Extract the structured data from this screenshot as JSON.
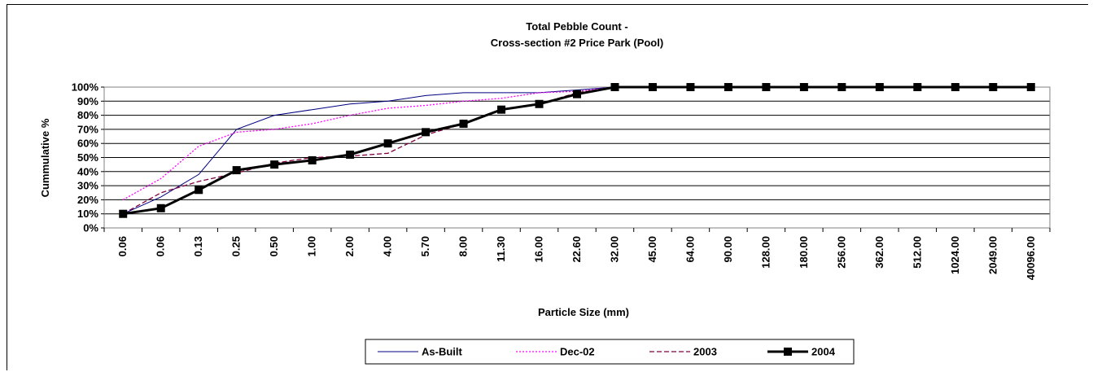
{
  "chart_data": {
    "type": "line",
    "title": [
      "Total Pebble Count -",
      "Cross-section #2  Price Park  (Pool)"
    ],
    "xlabel": "Particle Size (mm)",
    "ylabel": "Cummulative %",
    "categories": [
      "0.06",
      "0.06",
      "0.13",
      "0.25",
      "0.50",
      "1.00",
      "2.00",
      "4.00",
      "5.70",
      "8.00",
      "11.30",
      "16.00",
      "22.60",
      "32.00",
      "45.00",
      "64.00",
      "90.00",
      "128.00",
      "180.00",
      "256.00",
      "362.00",
      "512.00",
      "1024.00",
      "2049.00",
      "40096.00"
    ],
    "y_ticks": [
      "0%",
      "10%",
      "20%",
      "30%",
      "40%",
      "50%",
      "60%",
      "70%",
      "80%",
      "90%",
      "100%"
    ],
    "ylim": [
      0,
      100
    ],
    "grid": true,
    "legend_position": "bottom",
    "series": [
      {
        "name": "As-Built",
        "style": "solid-thin",
        "color": "#000080",
        "values": [
          10,
          22,
          38,
          70,
          80,
          84,
          88,
          90,
          94,
          96,
          96,
          96,
          98,
          100,
          100,
          100,
          100,
          100,
          100,
          100,
          100,
          100,
          100,
          100,
          100
        ]
      },
      {
        "name": "Dec-02",
        "style": "dotted",
        "color": "#ff00ff",
        "values": [
          20,
          35,
          58,
          68,
          70,
          74,
          80,
          85,
          87,
          90,
          92,
          96,
          97,
          100,
          100,
          100,
          100,
          100,
          100,
          100,
          100,
          100,
          100,
          100,
          100
        ]
      },
      {
        "name": "2003",
        "style": "dashed",
        "color": "#800040",
        "values": [
          10,
          25,
          33,
          39,
          46,
          50,
          51,
          53,
          66,
          74,
          84,
          88,
          96,
          100,
          100,
          100,
          100,
          100,
          100,
          100,
          100,
          100,
          100,
          100,
          100
        ]
      },
      {
        "name": "2004",
        "style": "bold-square",
        "color": "#000000",
        "values": [
          10,
          14,
          27,
          41,
          45,
          48,
          52,
          60,
          68,
          74,
          84,
          88,
          95,
          100,
          100,
          100,
          100,
          100,
          100,
          100,
          100,
          100,
          100,
          100,
          100
        ]
      }
    ]
  }
}
